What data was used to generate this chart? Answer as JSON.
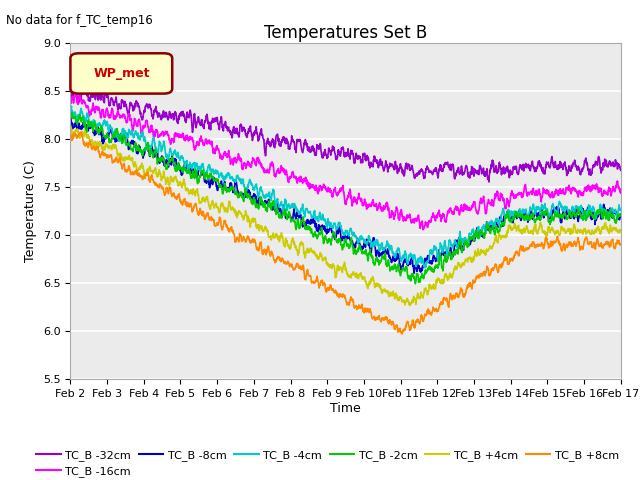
{
  "title": "Temperatures Set B",
  "xlabel": "Time",
  "ylabel": "Temperature (C)",
  "annotation": "No data for f_TC_temp16",
  "legend_label": "WP_met",
  "ylim": [
    5.5,
    9.0
  ],
  "series": {
    "TC_B -32cm": {
      "color": "#9900cc",
      "lw": 1.2
    },
    "TC_B -16cm": {
      "color": "#ff00ff",
      "lw": 1.2
    },
    "TC_B -8cm": {
      "color": "#0000cc",
      "lw": 1.2
    },
    "TC_B -4cm": {
      "color": "#00cccc",
      "lw": 1.2
    },
    "TC_B -2cm": {
      "color": "#00cc00",
      "lw": 1.2
    },
    "TC_B +4cm": {
      "color": "#cccc00",
      "lw": 1.2
    },
    "TC_B +8cm": {
      "color": "#ff8800",
      "lw": 1.2
    }
  },
  "xtick_labels": [
    "Feb 2",
    "Feb 3",
    "Feb 4",
    "Feb 5",
    "Feb 6",
    "Feb 7",
    "Feb 8",
    "Feb 9",
    "Feb 10",
    "Feb 11",
    "Feb 12",
    "Feb 13",
    "Feb 14",
    "Feb 15",
    "Feb 16",
    "Feb 17"
  ],
  "plot_bg": "#ebebeb",
  "grid_color": "#ffffff",
  "title_fontsize": 12,
  "axis_fontsize": 9,
  "tick_fontsize": 8
}
